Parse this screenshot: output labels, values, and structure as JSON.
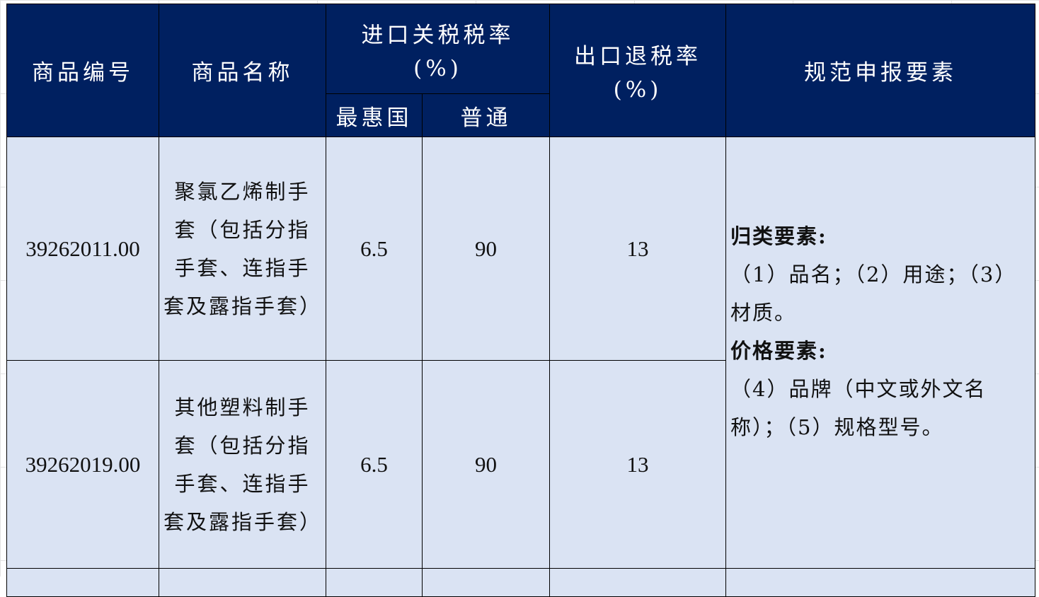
{
  "header": {
    "code": "商品编号",
    "name": "商品名称",
    "import_rate": "进口关税税率",
    "import_rate_unit": "(%)",
    "mfn": "最惠国",
    "general": "普通",
    "export_rebate": "出口退税率",
    "export_rebate_unit": "(%)",
    "spec": "规范申报要素"
  },
  "rows": [
    {
      "code": "39262011.00",
      "name": "聚氯乙烯制手套（包括分指手套、连指手套及露指手套）",
      "mfn": "6.5",
      "general": "90",
      "export_rebate": "13"
    },
    {
      "code": "39262019.00",
      "name": "其他塑料制手套（包括分指手套、连指手套及露指手套）",
      "mfn": "6.5",
      "general": "90",
      "export_rebate": "13"
    }
  ],
  "spec": {
    "classify_title": "归类要素:",
    "classify_text": "（1）品名；（2）用途；（3）材质。",
    "price_title": "价格要素:",
    "price_text": "（4）品牌（中文或外文名称）；（5）规格型号。"
  },
  "colors": {
    "header_bg": "#002060",
    "body_bg": "#dae3f3"
  }
}
